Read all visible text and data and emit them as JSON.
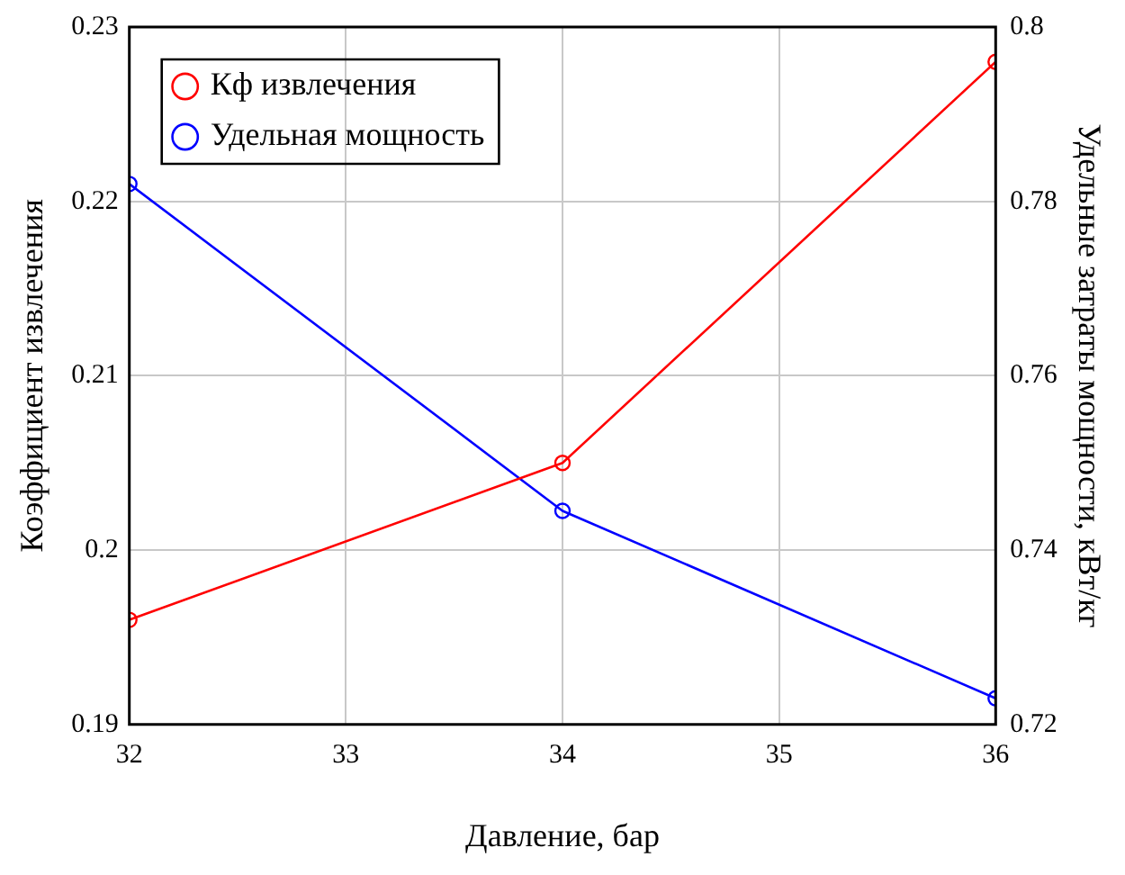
{
  "chart_data": {
    "type": "line",
    "xlabel": "Давление, бар",
    "ylabel": "Коэффициент извлечения",
    "y2label": "Удельные затраты мощности, кВт/кг",
    "x": [
      32,
      34,
      36
    ],
    "xlim": [
      32,
      36
    ],
    "xticks": [
      32,
      33,
      34,
      35,
      36
    ],
    "ylim": [
      0.19,
      0.23
    ],
    "yticks": [
      0.19,
      0.2,
      0.21,
      0.22,
      0.23
    ],
    "y2lim": [
      0.72,
      0.8
    ],
    "y2ticks": [
      0.72,
      0.74,
      0.76,
      0.78,
      0.8
    ],
    "series": [
      {
        "name": "Кф извлечения",
        "color": "#ff0000",
        "values": [
          0.196,
          0.205,
          0.228
        ]
      },
      {
        "name": "Удельная мощность",
        "color": "#0000ff",
        "values": [
          0.782,
          0.7445,
          0.723
        ],
        "axis": "y2"
      }
    ],
    "grid": true,
    "legend": "top left",
    "marker": "circle",
    "line_style": "solid"
  }
}
